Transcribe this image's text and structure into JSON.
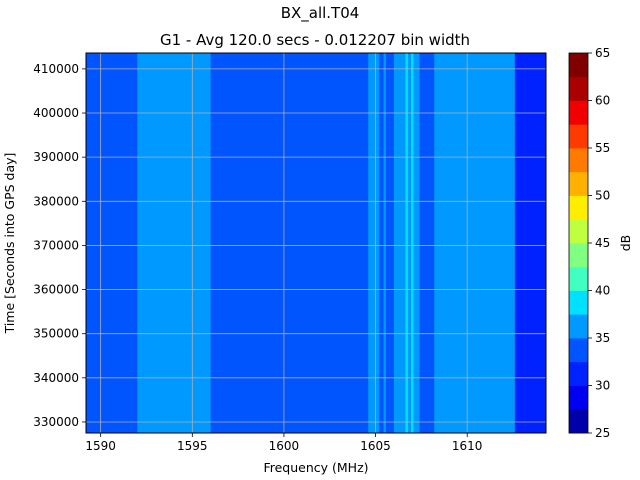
{
  "chart_data": {
    "type": "heatmap",
    "title": "BX_all.T04",
    "subtitle": "G1 - Avg 120.0 secs - 0.012207 bin width",
    "xlabel": "Frequency (MHz)",
    "ylabel": "Time [Seconds into GPS day]",
    "xlim": [
      1589.2,
      1614.3
    ],
    "ylim": [
      327500,
      413600
    ],
    "xticks": [
      1590,
      1595,
      1600,
      1605,
      1610
    ],
    "yticks": [
      330000,
      340000,
      350000,
      360000,
      370000,
      380000,
      390000,
      400000,
      410000
    ],
    "grid": true,
    "colorbar": {
      "label": "dB",
      "min": 25,
      "max": 65,
      "ticks": [
        25,
        30,
        35,
        40,
        45,
        50,
        55,
        60,
        65
      ],
      "levels": [
        25,
        27.5,
        30,
        32.5,
        35,
        37.5,
        40,
        42.5,
        45,
        47.5,
        50,
        52.5,
        55,
        57.5,
        60,
        62.5,
        65
      ],
      "colors": [
        "#0000aa",
        "#0000f0",
        "#0022ff",
        "#0055ff",
        "#0099ff",
        "#00e0ff",
        "#40ffc0",
        "#80ff80",
        "#c0ff40",
        "#ffee00",
        "#ffb000",
        "#ff7a00",
        "#ff3a00",
        "#f00000",
        "#aa0000",
        "#800000"
      ]
    },
    "frequency_bands": [
      {
        "from": 1589.2,
        "to": 1592.0,
        "db": 32.5
      },
      {
        "from": 1592.0,
        "to": 1596.0,
        "db": 35
      },
      {
        "from": 1596.0,
        "to": 1604.6,
        "db": 32.5
      },
      {
        "from": 1604.6,
        "to": 1605.2,
        "db": 35
      },
      {
        "from": 1605.2,
        "to": 1606.0,
        "db": 32.5
      },
      {
        "from": 1606.0,
        "to": 1607.4,
        "db": 35
      },
      {
        "from": 1607.4,
        "to": 1608.2,
        "db": 32.5
      },
      {
        "from": 1608.2,
        "to": 1612.6,
        "db": 35
      },
      {
        "from": 1612.6,
        "to": 1614.3,
        "db": 30
      }
    ],
    "narrow_lines": [
      {
        "freq": 1605.5,
        "db": 35
      },
      {
        "freq": 1606.3,
        "db": 35
      },
      {
        "freq": 1606.7,
        "db": 37.5
      },
      {
        "freq": 1607.0,
        "db": 37.5
      }
    ]
  }
}
